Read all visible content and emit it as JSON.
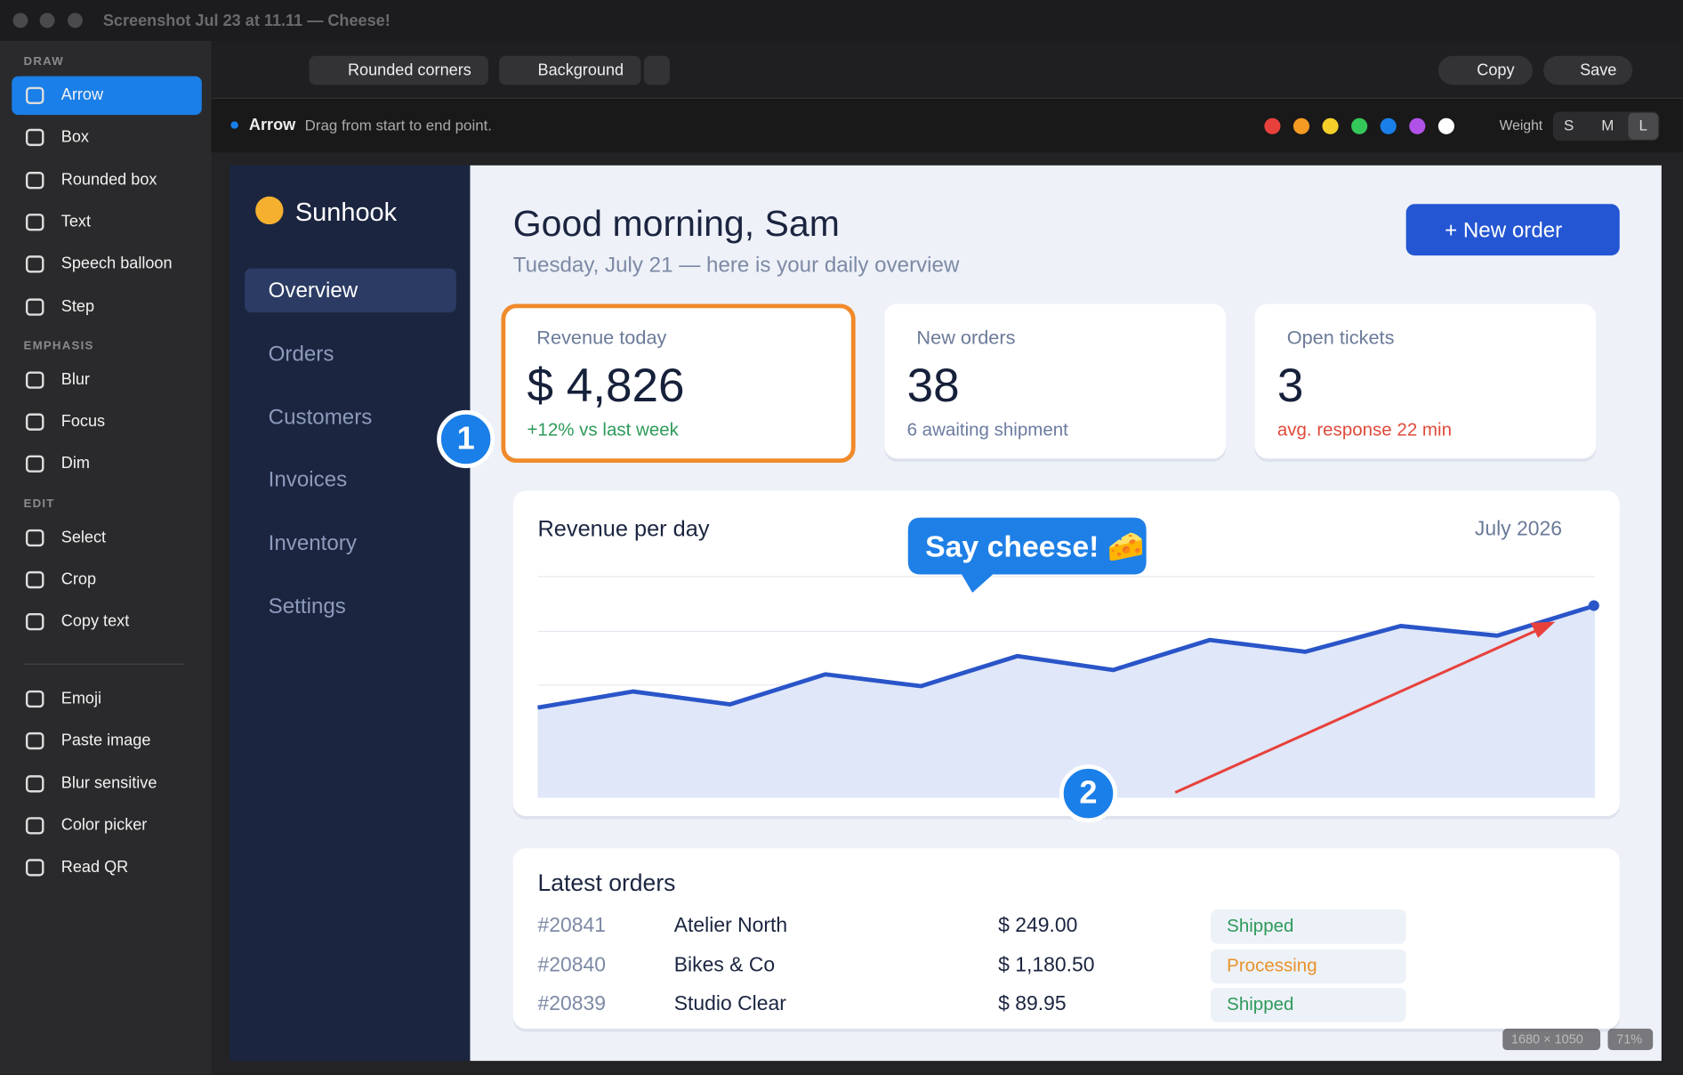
{
  "window": {
    "title": "Screenshot Jul 23 at 11.11 — Cheese!"
  },
  "toolbar": {
    "rounded_corners": "Rounded corners",
    "background": "Background",
    "copy": "Copy",
    "save": "Save"
  },
  "hint": {
    "tool": "Arrow",
    "text": "Drag from start to end point.",
    "weight_label": "Weight",
    "weights": [
      "S",
      "M",
      "L"
    ]
  },
  "tools": {
    "sections": [
      {
        "title": "DRAW",
        "items": [
          "Arrow",
          "Box",
          "Rounded box",
          "Text",
          "Speech balloon",
          "Step"
        ]
      },
      {
        "title": "EMPHASIS",
        "items": [
          "Blur",
          "Focus",
          "Dim"
        ]
      },
      {
        "title": "EDIT",
        "items": [
          "Select",
          "Crop",
          "Copy text"
        ]
      }
    ],
    "extra_items": [
      "Emoji",
      "Paste image",
      "Blur sensitive",
      "Color picker",
      "Read QR"
    ]
  },
  "app": {
    "brand": "Sunhook",
    "nav": [
      "Overview",
      "Orders",
      "Customers",
      "Invoices",
      "Inventory",
      "Settings"
    ],
    "greeting": "Good morning, Sam",
    "subtitle": "Tuesday, July 21 — here is your daily overview",
    "new_order": "+ New order",
    "cards": [
      {
        "label": "Revenue today",
        "value": "$ 4,826",
        "note": "+12% vs last week"
      },
      {
        "label": "New orders",
        "value": "38",
        "note": "6 awaiting shipment"
      },
      {
        "label": "Open tickets",
        "value": "3",
        "note": "avg. response 22 min"
      }
    ],
    "chart": {
      "title": "Revenue per day",
      "period": "July 2026"
    },
    "orders": {
      "title": "Latest orders",
      "rows": [
        [
          "#20841",
          "Atelier North",
          "$ 249.00",
          "Shipped"
        ],
        [
          "#20840",
          "Bikes & Co",
          "$ 1,180.50",
          "Processing"
        ],
        [
          "#20839",
          "Studio Clear",
          "$ 89.95",
          "Shipped"
        ]
      ]
    }
  },
  "annotations": {
    "callout": "Say cheese! 🧀",
    "steps": [
      "1",
      "2"
    ]
  },
  "status": {
    "size": "1680 × 1050",
    "zoom": "71%"
  }
}
